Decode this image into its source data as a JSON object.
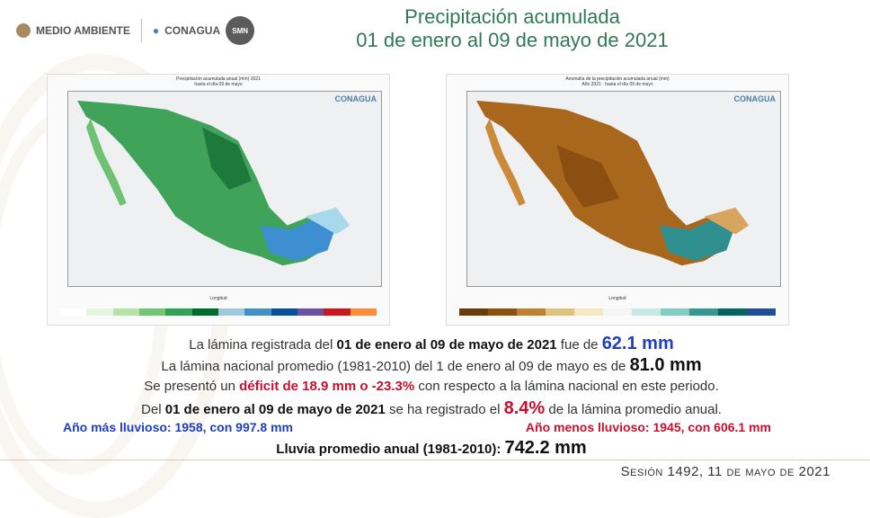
{
  "header": {
    "medio_ambiente": "MEDIO AMBIENTE",
    "conagua": "CONAGUA",
    "seal_text": "SMN",
    "title_line1": "Precipitación acumulada",
    "title_line2": "01 de enero al 09 de mayo de 2021"
  },
  "map_left": {
    "title": "Precipitación acumulada anual (mm) 2021",
    "subtitle": "hasta el día 09 de mayo",
    "brand": "CONAGUA",
    "xlabel": "Longitud"
  },
  "map_right": {
    "title": "Anomalía de la precipitación acumulada anual (mm)",
    "subtitle": "Año 2021 · hasta el día 09 de mayo",
    "brand": "CONAGUA",
    "xlabel": "Longitud"
  },
  "colors": {
    "title_green": "#2f7a55",
    "blue_text": "#1f3fbf",
    "red_text": "#c8102e"
  },
  "stats": {
    "line1_a": "La lámina registrada del ",
    "line1_b": "01 de enero al 09 de mayo de 2021",
    "line1_c": " fue de ",
    "line1_d": "62.1 mm",
    "line2_a": "La lámina nacional promedio (1981-2010) del 1 de enero al 09 de mayo es de ",
    "line2_b": "81.0 mm",
    "line3_a": "Se presentó un ",
    "line3_b": "déficit de 18.9 mm o -23.3%",
    "line3_c": " con respecto a la lámina nacional en este periodo.",
    "line4_a": "Del ",
    "line4_b": "01 de enero al 09 de mayo de 2021",
    "line4_c": " se ha registrado el ",
    "line4_d": "8.4%",
    "line4_e": " de la lámina promedio anual.",
    "wettest": "Año más lluvioso: 1958, con 997.8 mm",
    "driest": "Año menos lluvioso: 1945, con 606.1 mm",
    "annual_avg_a": "Lluvia promedio anual (1981-2010): ",
    "annual_avg_b": "742.2 mm"
  },
  "footer": "Sesión 1492, 11 de mayo de 2021"
}
